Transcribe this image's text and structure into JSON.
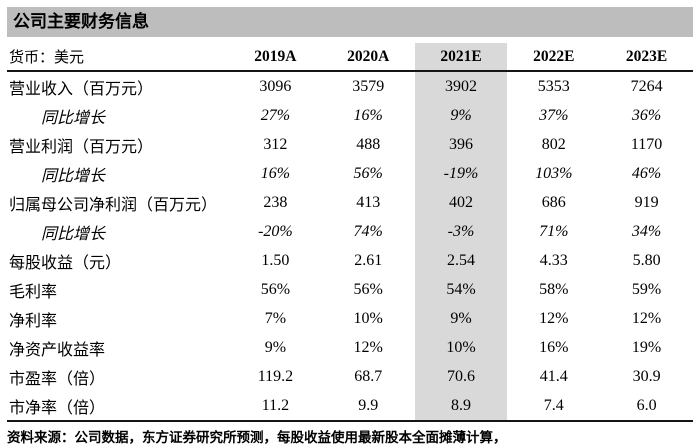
{
  "title": "公司主要财务信息",
  "colors": {
    "title_bar_bg": "#bdbdbd",
    "highlight_column_bg": "#d9d9d9",
    "rule_color": "#151515",
    "text": "#000000"
  },
  "table": {
    "header": {
      "label": "货币：美元",
      "years": [
        "2019A",
        "2020A",
        "2021E",
        "2022E",
        "2023E"
      ],
      "highlighted_year": "2021E"
    },
    "rows": [
      {
        "label": "营业收入（百万元）",
        "indent": false,
        "values": [
          "3096",
          "3579",
          "3902",
          "5353",
          "7264"
        ]
      },
      {
        "label": "同比增长",
        "indent": true,
        "values": [
          "27%",
          "16%",
          "9%",
          "37%",
          "36%"
        ]
      },
      {
        "label": "营业利润（百万元）",
        "indent": false,
        "values": [
          "312",
          "488",
          "396",
          "802",
          "1170"
        ]
      },
      {
        "label": "同比增长",
        "indent": true,
        "values": [
          "16%",
          "56%",
          "-19%",
          "103%",
          "46%"
        ]
      },
      {
        "label": "归属母公司净利润（百万元）",
        "indent": false,
        "values": [
          "238",
          "413",
          "402",
          "686",
          "919"
        ]
      },
      {
        "label": "同比增长",
        "indent": true,
        "values": [
          "-20%",
          "74%",
          "-3%",
          "71%",
          "34%"
        ]
      },
      {
        "label": "每股收益（元）",
        "indent": false,
        "values": [
          "1.50",
          "2.61",
          "2.54",
          "4.33",
          "5.80"
        ]
      },
      {
        "label": "毛利率",
        "indent": false,
        "values": [
          "56%",
          "56%",
          "54%",
          "58%",
          "59%"
        ]
      },
      {
        "label": "净利率",
        "indent": false,
        "values": [
          "7%",
          "10%",
          "9%",
          "12%",
          "12%"
        ]
      },
      {
        "label": "净资产收益率",
        "indent": false,
        "values": [
          "9%",
          "12%",
          "10%",
          "16%",
          "19%"
        ]
      },
      {
        "label": "市盈率（倍）",
        "indent": false,
        "values": [
          "119.2",
          "68.7",
          "70.6",
          "41.4",
          "30.9"
        ]
      },
      {
        "label": "市净率（倍）",
        "indent": false,
        "values": [
          "11.2",
          "9.9",
          "8.9",
          "7.4",
          "6.0"
        ]
      }
    ]
  },
  "footer": "资料来源：公司数据，东方证券研究所预测，每股收益使用最新股本全面摊薄计算，"
}
